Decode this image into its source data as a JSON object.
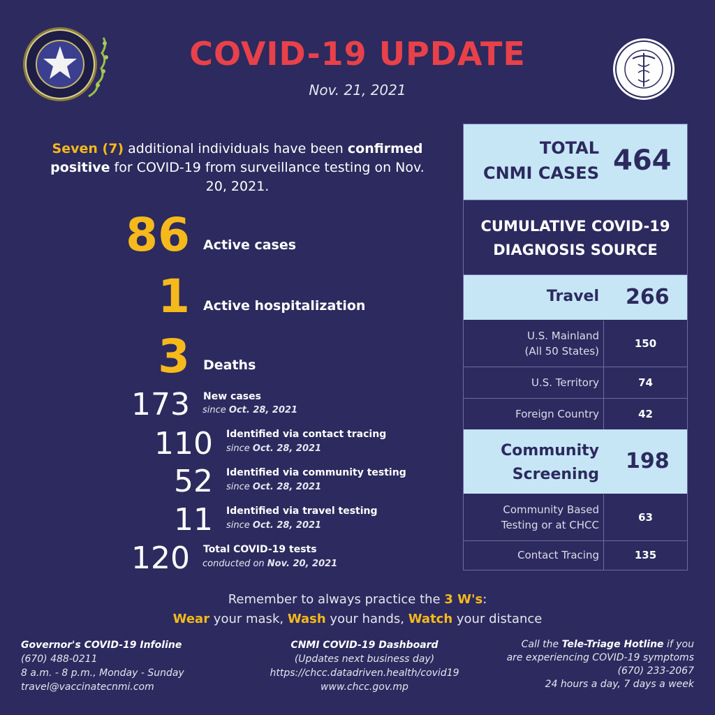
{
  "header": {
    "title": "COVID-19 UPDATE",
    "date": "Nov. 21, 2021"
  },
  "colors": {
    "background": "#2c2a5e",
    "accent_red": "#e8414a",
    "accent_yellow": "#f6b91c",
    "table_light": "#c6e6f6"
  },
  "icons": {
    "left": "cnmi-official-seal-icon",
    "right": "chcc-seal-icon"
  },
  "intro": {
    "part1": "Seven (7)",
    "part2": " additional individuals have been ",
    "part3": "confirmed positive",
    "part4": " for COVID-19 from surveillance testing on Nov. 20, 2021."
  },
  "stats": {
    "active_cases": {
      "value": "86",
      "label": "Active cases"
    },
    "hospitalization": {
      "value": "1",
      "label": "Active hospitalization"
    },
    "deaths": {
      "value": "3",
      "label": "Deaths"
    },
    "new_cases": {
      "value": "173",
      "label": "New cases",
      "since": "since ",
      "since_date": "Oct. 28, 2021"
    },
    "contact_tracing": {
      "value": "110",
      "label": "Identified via contact tracing",
      "since": "since ",
      "since_date": "Oct. 28, 2021"
    },
    "community_testing": {
      "value": "52",
      "label": "Identified via community testing",
      "since": "since ",
      "since_date": "Oct. 28, 2021"
    },
    "travel_testing": {
      "value": "11",
      "label": "Identified via travel testing",
      "since": "since ",
      "since_date": "Oct. 28, 2021"
    },
    "total_tests": {
      "value": "120",
      "label": "Total COVID-19 tests",
      "since": "conducted on ",
      "since_date": "Nov. 20, 2021"
    }
  },
  "table": {
    "total_label_line1": "TOTAL",
    "total_label_line2": "CNMI CASES",
    "total_value": "464",
    "cumulative_line1": "CUMULATIVE COVID-19",
    "cumulative_line2": "DIAGNOSIS SOURCE",
    "travel": {
      "label": "Travel",
      "value": "266",
      "rows": [
        {
          "label_line1": "U.S. Mainland",
          "label_line2": "(All 50 States)",
          "value": "150"
        },
        {
          "label_line1": "U.S. Territory",
          "value": "74"
        },
        {
          "label_line1": "Foreign Country",
          "value": "42"
        }
      ]
    },
    "community": {
      "label_line1": "Community",
      "label_line2": "Screening",
      "value": "198",
      "rows": [
        {
          "label_line1": "Community Based",
          "label_line2": "Testing or at CHCC",
          "value": "63"
        },
        {
          "label_line1": "Contact Tracing",
          "value": "135"
        }
      ]
    }
  },
  "reminder": {
    "line1_pre": "Remember to always practice the ",
    "line1_hl": "3 W's",
    "line1_post": ":",
    "w1": "Wear",
    "w1_rest": " your mask, ",
    "w2": "Wash",
    "w2_rest": " your hands, ",
    "w3": "Watch",
    "w3_rest": " your distance"
  },
  "footer": {
    "infoline": {
      "title": "Governor's COVID-19 Infoline",
      "phone": "(670) 488-0211",
      "hours": "8 a.m. - 8 p.m., Monday - Sunday",
      "email": "travel@vaccinatecnmi.com"
    },
    "dashboard": {
      "title": "CNMI COVID-19 Dashboard",
      "note": "(Updates next business day)",
      "url1": "https://chcc.datadriven.health/covid19",
      "url2": "www.chcc.gov.mp"
    },
    "hotline": {
      "pre": "Call the ",
      "name": "Tele-Triage Hotline",
      "post": " if you",
      "line2": "are experiencing COVID-19 symptoms",
      "phone": "(670) 233-2067",
      "hours": "24 hours a day, 7 days a week"
    }
  }
}
